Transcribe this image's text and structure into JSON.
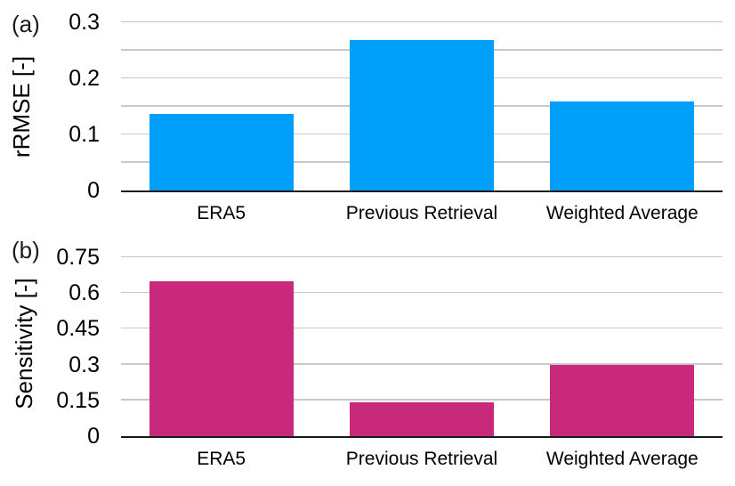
{
  "styles": {
    "background": "#ffffff",
    "gridline_color": "#c8c8c8",
    "axis_color": "#1a1a1a",
    "text_color": "#000000"
  },
  "chart_data": [
    {
      "type": "bar",
      "panel_label": "(a)",
      "title": "",
      "xlabel": "",
      "ylabel": "rRMSE [-]",
      "categories": [
        "ERA5",
        "Previous Retrieval",
        "Weighted Average"
      ],
      "values": [
        0.137,
        0.269,
        0.158
      ],
      "ylim": [
        0,
        0.3
      ],
      "yticks": [
        0,
        0.1,
        0.2,
        0.3
      ],
      "ytick_labels": [
        "0",
        "0.1",
        "0.2",
        "0.3"
      ],
      "gridline_interval": 0.05,
      "grid": true,
      "legend": false,
      "bar_color": "#009ffa"
    },
    {
      "type": "bar",
      "panel_label": "(b)",
      "title": "",
      "xlabel": "",
      "ylabel": "Sensitivity [-]",
      "categories": [
        "ERA5",
        "Previous Retrieval",
        "Weighted Average"
      ],
      "values": [
        0.65,
        0.14,
        0.3
      ],
      "ylim": [
        0,
        0.75
      ],
      "yticks": [
        0,
        0.15,
        0.3,
        0.45,
        0.6,
        0.75
      ],
      "ytick_labels": [
        "0",
        "0.15",
        "0.3",
        "0.45",
        "0.6",
        "0.75"
      ],
      "gridline_interval": 0.15,
      "grid": true,
      "legend": false,
      "bar_color": "#c9297b"
    }
  ]
}
